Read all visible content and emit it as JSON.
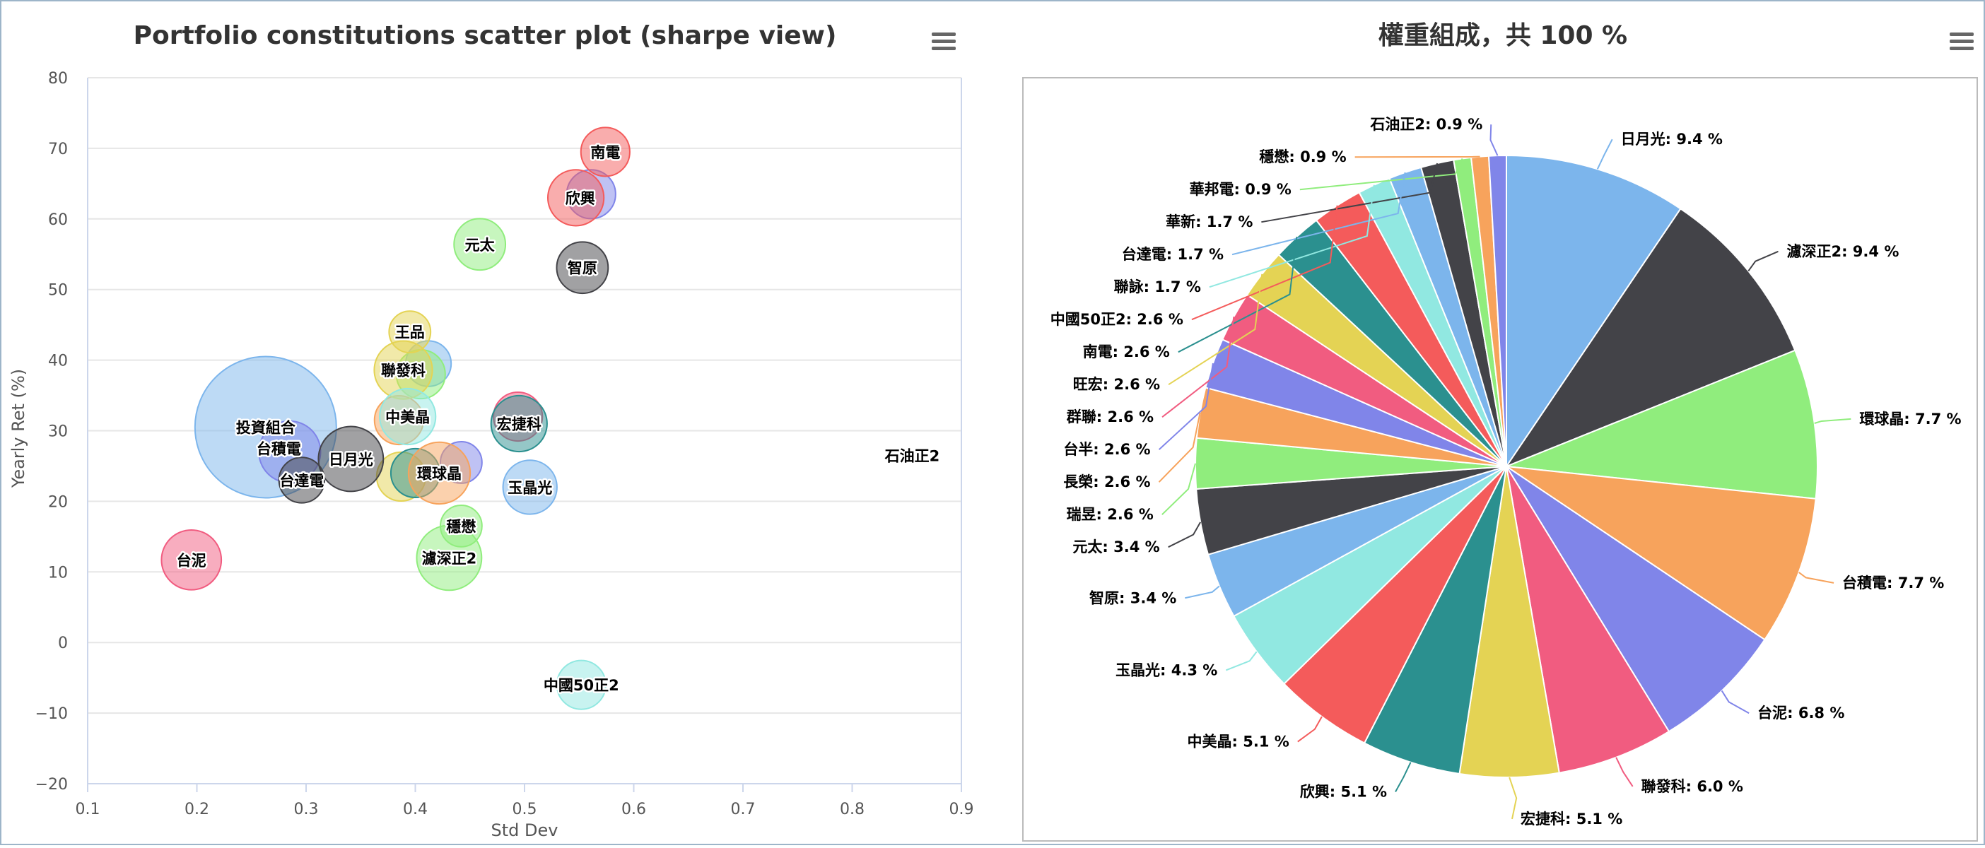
{
  "colors": [
    "#7cb5ec",
    "#434348",
    "#90ed7d",
    "#f7a35c",
    "#8085e9",
    "#f15c80",
    "#e4d354",
    "#2b908f",
    "#f45b5b",
    "#91e8e1"
  ],
  "scatter": {
    "menu_icon": "hamburger-menu-icon",
    "chart_data": {
      "type": "scatter",
      "title": "Portfolio constitutions scatter plot (sharpe view)",
      "xlabel": "Std Dev",
      "ylabel": "Yearly Ret (%)",
      "xlim": [
        0.1,
        0.9
      ],
      "ylim": [
        -20,
        80
      ],
      "xticks": [
        "0.1",
        "0.2",
        "0.3",
        "0.4",
        "0.5",
        "0.6",
        "0.7",
        "0.8",
        "0.9"
      ],
      "yticks": [
        "−20",
        "−10",
        "0",
        "10",
        "20",
        "30",
        "40",
        "50",
        "60",
        "70",
        "80"
      ],
      "grid": true,
      "points": [
        {
          "name": "投資組合",
          "x": 0.263,
          "y": 30.5,
          "size": 100,
          "color": "#7cb5ec",
          "label_dx": 0,
          "label_dy": 0
        },
        {
          "name": "台積電",
          "x": 0.285,
          "y": 27.0,
          "size": 7.7,
          "color": "#8085e9",
          "label_dx": -0.01,
          "label_dy": 0.5
        },
        {
          "name": "台達電",
          "x": 0.296,
          "y": 23.0,
          "size": 1.7,
          "color": "#434348",
          "label_dx": 0,
          "label_dy": 0
        },
        {
          "name": "日月光",
          "x": 0.341,
          "y": 26.0,
          "size": 9.4,
          "color": "#434348",
          "label_dx": 0,
          "label_dy": 0
        },
        {
          "name": "台泥",
          "x": 0.195,
          "y": 11.7,
          "size": 6.8,
          "color": "#f15c80",
          "label_dx": 0,
          "label_dy": 0
        },
        {
          "name": "南電",
          "x": 0.574,
          "y": 69.5,
          "size": 2.6,
          "color": "#f45b5b",
          "label_dx": 0,
          "label_dy": 0
        },
        {
          "name": "欣興",
          "x": 0.547,
          "y": 63.0,
          "size": 5.1,
          "color": "#f45b5b",
          "label_dx": 0.004,
          "label_dy": 0
        },
        {
          "name": "元太",
          "x": 0.459,
          "y": 56.4,
          "size": 3.4,
          "color": "#90ed7d",
          "label_dx": 0,
          "label_dy": 0
        },
        {
          "name": "智原",
          "x": 0.553,
          "y": 53.1,
          "size": 3.4,
          "color": "#434348",
          "label_dx": 0,
          "label_dy": 0
        },
        {
          "name": "王品",
          "x": 0.395,
          "y": 44.0,
          "size": 0.9,
          "color": "#e4d354",
          "label_dx": 0,
          "label_dy": 0
        },
        {
          "name": "聯發科",
          "x": 0.389,
          "y": 38.6,
          "size": 6.0,
          "color": "#e4d354",
          "label_dx": 0,
          "label_dy": 0
        },
        {
          "name": "中美晶",
          "x": 0.393,
          "y": 32.0,
          "size": 5.1,
          "color": "#91e8e1",
          "label_dx": 0,
          "label_dy": 0
        },
        {
          "name": "宏捷科",
          "x": 0.495,
          "y": 31.0,
          "size": 5.1,
          "color": "#2b908f",
          "label_dx": 0,
          "label_dy": 0
        },
        {
          "name": "環球晶",
          "x": 0.422,
          "y": 24.0,
          "size": 7.7,
          "color": "#f7a35c",
          "label_dx": 0,
          "label_dy": 0
        },
        {
          "name": "玉晶光",
          "x": 0.505,
          "y": 22.0,
          "size": 4.3,
          "color": "#7cb5ec",
          "label_dx": 0,
          "label_dy": 0
        },
        {
          "name": "穩懋",
          "x": 0.442,
          "y": 16.5,
          "size": 0.9,
          "color": "#90ed7d",
          "label_dx": 0,
          "label_dy": 0
        },
        {
          "name": "濾深正2",
          "x": 0.431,
          "y": 12.0,
          "size": 9.4,
          "color": "#90ed7d",
          "label_dx": 0,
          "label_dy": 0
        },
        {
          "name": "中國50正2",
          "x": 0.552,
          "y": -6.0,
          "size": 2.6,
          "color": "#91e8e1",
          "label_dx": 0,
          "label_dy": 0
        },
        {
          "name": "石油正2",
          "x": 0.855,
          "y": 26.5,
          "size": 0.9,
          "color": "#ffffff",
          "label_dx": 0,
          "label_dy": 0
        }
      ],
      "extra_bubbles": [
        {
          "x": 0.412,
          "y": 39.5,
          "size": 1.7,
          "color": "#7cb5ec"
        },
        {
          "x": 0.405,
          "y": 38.0,
          "size": 2.6,
          "color": "#90ed7d"
        },
        {
          "x": 0.385,
          "y": 31.5,
          "size": 2.6,
          "color": "#f7a35c"
        },
        {
          "x": 0.387,
          "y": 23.5,
          "size": 2.6,
          "color": "#e4d354"
        },
        {
          "x": 0.4,
          "y": 24.0,
          "size": 2.6,
          "color": "#2b908f"
        },
        {
          "x": 0.442,
          "y": 25.5,
          "size": 0.9,
          "color": "#8085e9"
        },
        {
          "x": 0.561,
          "y": 63.5,
          "size": 2.6,
          "color": "#8085e9"
        },
        {
          "x": 0.494,
          "y": 32.0,
          "size": 2.6,
          "color": "#f15c80"
        }
      ]
    }
  },
  "pie": {
    "menu_icon": "hamburger-menu-icon",
    "chart_data": {
      "type": "pie",
      "title": "權重組成，共 100 %",
      "slices": [
        {
          "name": "日月光",
          "value": 9.4,
          "label": "日月光: 9.4 %"
        },
        {
          "name": "濾深正2",
          "value": 9.4,
          "label": "濾深正2: 9.4 %"
        },
        {
          "name": "環球晶",
          "value": 7.7,
          "label": "環球晶: 7.7 %"
        },
        {
          "name": "台積電",
          "value": 7.7,
          "label": "台積電: 7.7 %"
        },
        {
          "name": "台泥",
          "value": 6.8,
          "label": "台泥: 6.8 %"
        },
        {
          "name": "聯發科",
          "value": 6.0,
          "label": "聯發科: 6.0 %"
        },
        {
          "name": "宏捷科",
          "value": 5.1,
          "label": "宏捷科: 5.1 %"
        },
        {
          "name": "欣興",
          "value": 5.1,
          "label": "欣興: 5.1 %"
        },
        {
          "name": "中美晶",
          "value": 5.1,
          "label": "中美晶: 5.1 %"
        },
        {
          "name": "玉晶光",
          "value": 4.3,
          "label": "玉晶光: 4.3 %"
        },
        {
          "name": "智原",
          "value": 3.4,
          "label": "智原: 3.4 %"
        },
        {
          "name": "元太",
          "value": 3.4,
          "label": "元太: 3.4 %"
        },
        {
          "name": "瑞昱",
          "value": 2.6,
          "label": "瑞昱: 2.6 %"
        },
        {
          "name": "長榮",
          "value": 2.6,
          "label": "長榮: 2.6 %"
        },
        {
          "name": "台半",
          "value": 2.6,
          "label": "台半: 2.6 %"
        },
        {
          "name": "群聯",
          "value": 2.6,
          "label": "群聯: 2.6 %"
        },
        {
          "name": "旺宏",
          "value": 2.6,
          "label": "旺宏: 2.6 %"
        },
        {
          "name": "南電",
          "value": 2.6,
          "label": "南電: 2.6 %"
        },
        {
          "name": "中國50正2",
          "value": 2.6,
          "label": "中國50正2: 2.6 %"
        },
        {
          "name": "聯詠",
          "value": 1.7,
          "label": "聯詠: 1.7 %"
        },
        {
          "name": "台達電",
          "value": 1.7,
          "label": "台達電: 1.7 %"
        },
        {
          "name": "華新",
          "value": 1.7,
          "label": "華新: 1.7 %"
        },
        {
          "name": "華邦電",
          "value": 0.9,
          "label": "華邦電: 0.9 %"
        },
        {
          "name": "穩懋",
          "value": 0.9,
          "label": "穩懋: 0.9 %"
        },
        {
          "name": "石油正2",
          "value": 0.9,
          "label": "石油正2: 0.9 %"
        }
      ]
    }
  }
}
